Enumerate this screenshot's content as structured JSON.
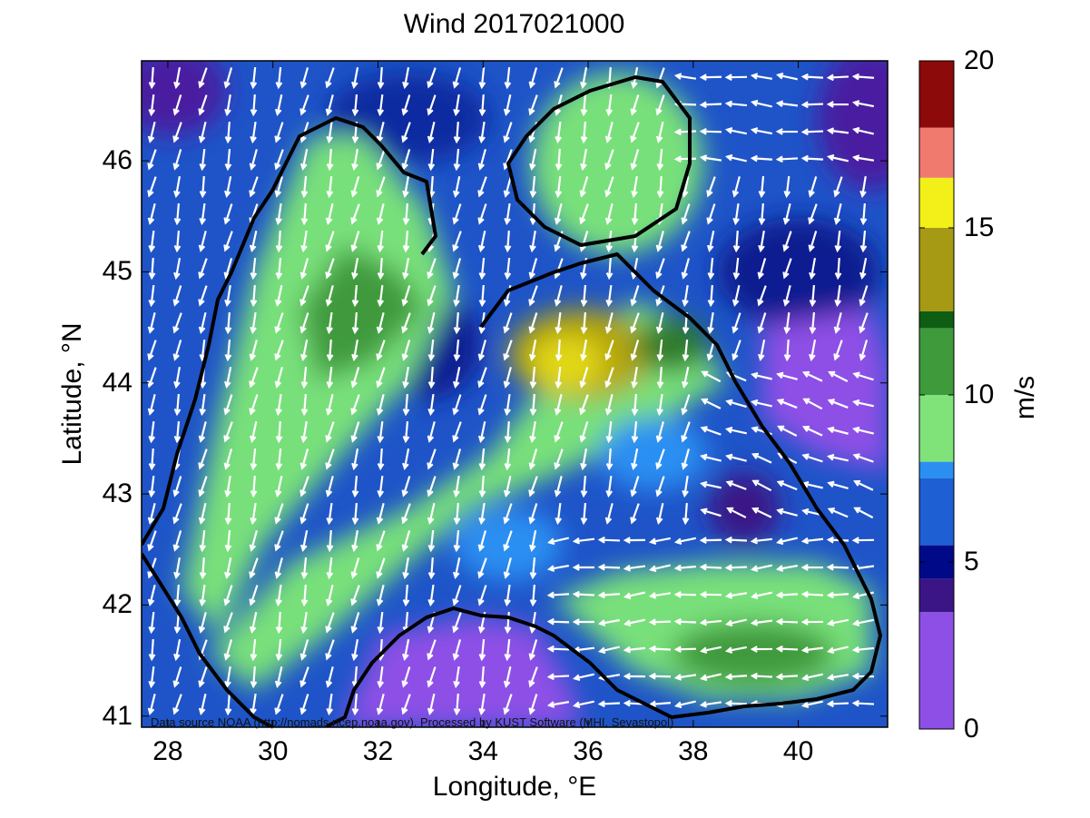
{
  "title": "Wind 2017021000",
  "x_axis": {
    "label": "Longitude, °E",
    "range": [
      27.5,
      41.7
    ],
    "ticks": [
      "28",
      "30",
      "32",
      "34",
      "36",
      "38",
      "40"
    ]
  },
  "y_axis": {
    "label": "Latitude, °N",
    "range": [
      40.9,
      46.9
    ],
    "ticks": [
      "41",
      "42",
      "43",
      "44",
      "45",
      "46"
    ]
  },
  "colorbar": {
    "label": "m/s",
    "range": [
      0,
      20
    ],
    "ticks": [
      "0",
      "5",
      "10",
      "15",
      "20"
    ],
    "bands": [
      {
        "from": 0,
        "to": 3.5,
        "color": "#8e4fe6"
      },
      {
        "from": 3.5,
        "to": 4.5,
        "color": "#3b1585"
      },
      {
        "from": 4.5,
        "to": 5.5,
        "color": "#000a88"
      },
      {
        "from": 5.5,
        "to": 7.5,
        "color": "#1f5fd4"
      },
      {
        "from": 7.5,
        "to": 8.0,
        "color": "#2b8ff2"
      },
      {
        "from": 8.0,
        "to": 10.0,
        "color": "#7fe37a"
      },
      {
        "from": 10.0,
        "to": 12.0,
        "color": "#3e9a3a"
      },
      {
        "from": 12.0,
        "to": 12.5,
        "color": "#0d5d12"
      },
      {
        "from": 12.5,
        "to": 15.0,
        "color": "#a69a15"
      },
      {
        "from": 15.0,
        "to": 16.5,
        "color": "#f2f018"
      },
      {
        "from": 16.5,
        "to": 18.0,
        "color": "#f07a6e"
      },
      {
        "from": 18.0,
        "to": 20.0,
        "color": "#8c0a0a"
      }
    ]
  },
  "credit": "Data source NOAA (http://nomads.ncep.noaa.gov). Processed by KUST Software (MHI, Sevastopol)",
  "chart_data": {
    "type": "heatmap",
    "variable": "wind speed",
    "units": "m/s",
    "region_wind_speeds": [
      {
        "lon": 30.5,
        "lat": 44.5,
        "speed": 9.5
      },
      {
        "lon": 36.0,
        "lat": 46.0,
        "speed": 9.5
      },
      {
        "lon": 35.5,
        "lat": 44.3,
        "speed": 14.5
      },
      {
        "lon": 32.0,
        "lat": 42.3,
        "speed": 9.0
      },
      {
        "lon": 38.5,
        "lat": 41.6,
        "speed": 10.5
      },
      {
        "lon": 40.0,
        "lat": 44.0,
        "speed": 2.0
      },
      {
        "lon": 34.0,
        "lat": 41.5,
        "speed": 2.5
      },
      {
        "lon": 39.0,
        "lat": 42.8,
        "speed": 3.5
      },
      {
        "lon": 33.5,
        "lat": 45.8,
        "speed": 5.5
      }
    ],
    "dominant_wind_direction": "from north-northeast"
  }
}
